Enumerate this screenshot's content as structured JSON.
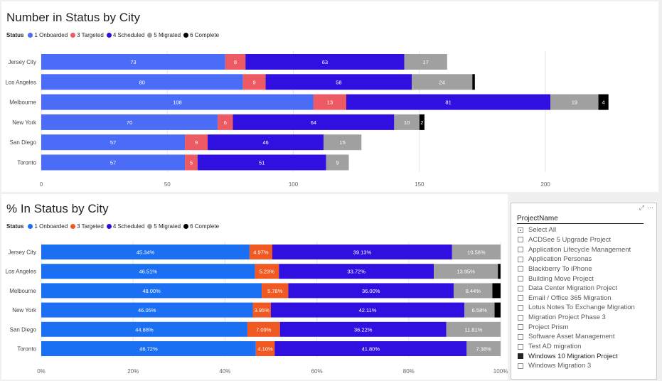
{
  "chart_data": [
    {
      "type": "bar",
      "orientation": "horizontal",
      "stacked": true,
      "title": "Number in Status by City",
      "legend_title": "Status",
      "legend_position": "top-left",
      "categories": [
        "Jersey City",
        "Los Angeles",
        "Melbourne",
        "New York",
        "San Diego",
        "Toronto"
      ],
      "series": [
        {
          "name": "1 Onboarded",
          "color": "#4a6cf7",
          "values": [
            73,
            80,
            108,
            70,
            57,
            57
          ]
        },
        {
          "name": "3 Targeted",
          "color": "#ee5a63",
          "values": [
            8,
            9,
            13,
            6,
            9,
            5
          ]
        },
        {
          "name": "4 Scheduled",
          "color": "#2f10e0",
          "values": [
            63,
            58,
            81,
            64,
            46,
            51
          ]
        },
        {
          "name": "5 Migrated",
          "color": "#a0a0a0",
          "values": [
            17,
            24,
            19,
            10,
            15,
            9
          ]
        },
        {
          "name": "6 Complete",
          "color": "#000000",
          "values": [
            0,
            1,
            4,
            2,
            0,
            0
          ]
        }
      ],
      "label_values": [
        [
          "73",
          "80",
          "108",
          "70",
          "57",
          "57"
        ],
        [
          "8",
          "9",
          "13",
          "6",
          "9",
          "5"
        ],
        [
          "63",
          "58",
          "81",
          "64",
          "46",
          "51"
        ],
        [
          "17",
          "24",
          "19",
          "10",
          "15",
          "9"
        ],
        [
          "",
          "",
          "4",
          "2",
          "",
          ""
        ]
      ],
      "xlim": [
        0,
        220
      ],
      "xticks": [
        0,
        50,
        100,
        150,
        200
      ],
      "xtick_labels": [
        "0",
        "50",
        "100",
        "150",
        "200"
      ],
      "grid": true
    },
    {
      "type": "bar",
      "orientation": "horizontal",
      "stacked": true,
      "title": "% In Status by City",
      "legend_title": "Status",
      "legend_position": "top-left",
      "categories": [
        "Jersey City",
        "Los Angeles",
        "Melbourne",
        "New York",
        "San Diego",
        "Toronto"
      ],
      "series": [
        {
          "name": "1 Onboarded",
          "color": "#1b6ff2",
          "values": [
            45.34,
            46.51,
            48.0,
            46.05,
            44.88,
            46.72
          ]
        },
        {
          "name": "3 Targeted",
          "color": "#f05a22",
          "values": [
            4.97,
            5.23,
            5.78,
            3.95,
            7.09,
            4.1
          ]
        },
        {
          "name": "4 Scheduled",
          "color": "#2f10e0",
          "values": [
            39.13,
            33.72,
            36.0,
            42.11,
            36.22,
            41.8
          ]
        },
        {
          "name": "5 Migrated",
          "color": "#a0a0a0",
          "values": [
            10.56,
            13.95,
            8.44,
            6.58,
            11.81,
            7.38
          ]
        },
        {
          "name": "6 Complete",
          "color": "#000000",
          "values": [
            0,
            0.58,
            1.78,
            1.31,
            0,
            0
          ]
        }
      ],
      "label_values": [
        [
          "45.34%",
          "46.51%",
          "48.00%",
          "46.05%",
          "44.88%",
          "46.72%"
        ],
        [
          "4.97%",
          "5.23%",
          "5.78%",
          "3.95%",
          "7.09%",
          "4.10%"
        ],
        [
          "39.13%",
          "33.72%",
          "36.00%",
          "42.11%",
          "36.22%",
          "41.80%"
        ],
        [
          "10.56%",
          "13.95%",
          "8.44%",
          "6.58%",
          "11.81%",
          "7.38%"
        ],
        [
          "",
          "",
          "",
          "",
          "",
          ""
        ]
      ],
      "xlim": [
        0,
        100
      ],
      "xticks": [
        0,
        20,
        40,
        60,
        80,
        100
      ],
      "xtick_labels": [
        "0%",
        "20%",
        "40%",
        "60%",
        "80%",
        "100%"
      ],
      "grid": true
    }
  ],
  "slicer": {
    "title": "ProjectName",
    "items": [
      {
        "label": "Select All",
        "state": "partial"
      },
      {
        "label": "ACDSee 5 Upgrade Project",
        "state": "unchecked"
      },
      {
        "label": "Application Lifecycle Management",
        "state": "unchecked"
      },
      {
        "label": "Application Personas",
        "state": "unchecked"
      },
      {
        "label": "Blackberry To iPhone",
        "state": "unchecked"
      },
      {
        "label": "Building Move Project",
        "state": "unchecked"
      },
      {
        "label": "Data Center Migration Project",
        "state": "unchecked"
      },
      {
        "label": "Email / Office 365 Migration",
        "state": "unchecked"
      },
      {
        "label": "Lotus Notes To Exchange Migration",
        "state": "unchecked"
      },
      {
        "label": "Migration Project Phase 3",
        "state": "unchecked"
      },
      {
        "label": "Project Prism",
        "state": "unchecked"
      },
      {
        "label": "Software Asset Management",
        "state": "unchecked"
      },
      {
        "label": "Test AD migration",
        "state": "unchecked"
      },
      {
        "label": "Windows 10 Migration Project",
        "state": "checked"
      },
      {
        "label": "Windows Migration 3",
        "state": "unchecked"
      }
    ],
    "icons": [
      "focus-mode-icon",
      "more-options-icon"
    ]
  }
}
